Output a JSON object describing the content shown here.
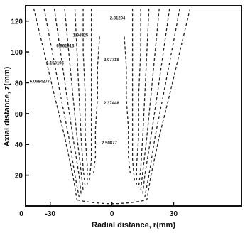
{
  "chart_data": {
    "type": "contour",
    "xlabel": "Radial distance, r(mm)",
    "ylabel": "Axial distance, z(mm)",
    "xlim": [
      -42,
      63
    ],
    "ylim": [
      0,
      130
    ],
    "xticks": [
      -30,
      0,
      30
    ],
    "yticks": [
      20,
      40,
      60,
      80,
      100,
      120
    ],
    "xtick_labels": [
      "-30",
      "0",
      "30"
    ],
    "ytick_labels": [
      "20",
      "40",
      "60",
      "80",
      "100",
      "120"
    ],
    "origin_label": "0",
    "grid": false,
    "contour_labels": [
      {
        "text": "2.31204",
        "r": -1,
        "z": 121
      },
      {
        "text": "1.94825",
        "r": -19,
        "z": 110
      },
      {
        "text": "6.961013",
        "r": -27,
        "z": 103
      },
      {
        "text": "2.07718",
        "r": -4,
        "z": 94
      },
      {
        "text": "6.150196",
        "r": -32,
        "z": 92
      },
      {
        "text": "6.0684277",
        "r": -40,
        "z": 80
      },
      {
        "text": "2.37448",
        "r": -4,
        "z": 66
      },
      {
        "text": "2.50877",
        "r": -5,
        "z": 40
      }
    ],
    "contours": [
      {
        "level": "outer",
        "points": [
          [
            -38,
            128
          ],
          [
            -33,
            100
          ],
          [
            -28,
            72
          ],
          [
            -23,
            45
          ],
          [
            -19,
            20
          ],
          [
            -17,
            4
          ]
        ],
        "mirror": true
      },
      {
        "level": "l2",
        "points": [
          [
            -33,
            128
          ],
          [
            -29,
            100
          ],
          [
            -25,
            72
          ],
          [
            -21,
            45
          ],
          [
            -18,
            20
          ],
          [
            -16,
            6
          ]
        ],
        "mirror": true
      },
      {
        "level": "l3",
        "points": [
          [
            -28,
            128
          ],
          [
            -25,
            100
          ],
          [
            -22,
            72
          ],
          [
            -19,
            45
          ],
          [
            -16,
            20
          ],
          [
            -15,
            8
          ]
        ],
        "mirror": true
      },
      {
        "level": "l4",
        "points": [
          [
            -23,
            128
          ],
          [
            -21,
            100
          ],
          [
            -19,
            72
          ],
          [
            -17,
            45
          ],
          [
            -15,
            22
          ],
          [
            -14,
            10
          ]
        ],
        "mirror": true
      },
      {
        "level": "l5",
        "points": [
          [
            -18,
            128
          ],
          [
            -17,
            100
          ],
          [
            -16,
            72
          ],
          [
            -15,
            45
          ],
          [
            -14,
            24
          ],
          [
            -13,
            12
          ]
        ],
        "mirror": true
      },
      {
        "level": "l6",
        "points": [
          [
            -14,
            128
          ],
          [
            -14,
            100
          ],
          [
            -13,
            72
          ],
          [
            -13,
            45
          ],
          [
            -12,
            26
          ],
          [
            -12,
            14
          ]
        ],
        "mirror": true
      },
      {
        "level": "l7",
        "points": [
          [
            -10,
            128
          ],
          [
            -10,
            100
          ],
          [
            -10,
            72
          ],
          [
            -10,
            48
          ],
          [
            -10,
            30
          ],
          [
            -11,
            16
          ]
        ],
        "mirror": true
      },
      {
        "level": "inner",
        "points": [
          [
            -6,
            110
          ],
          [
            -7,
            90
          ],
          [
            -7,
            70
          ],
          [
            -8,
            50
          ],
          [
            -8,
            32
          ],
          [
            -9,
            20
          ]
        ],
        "mirror": true
      }
    ]
  }
}
